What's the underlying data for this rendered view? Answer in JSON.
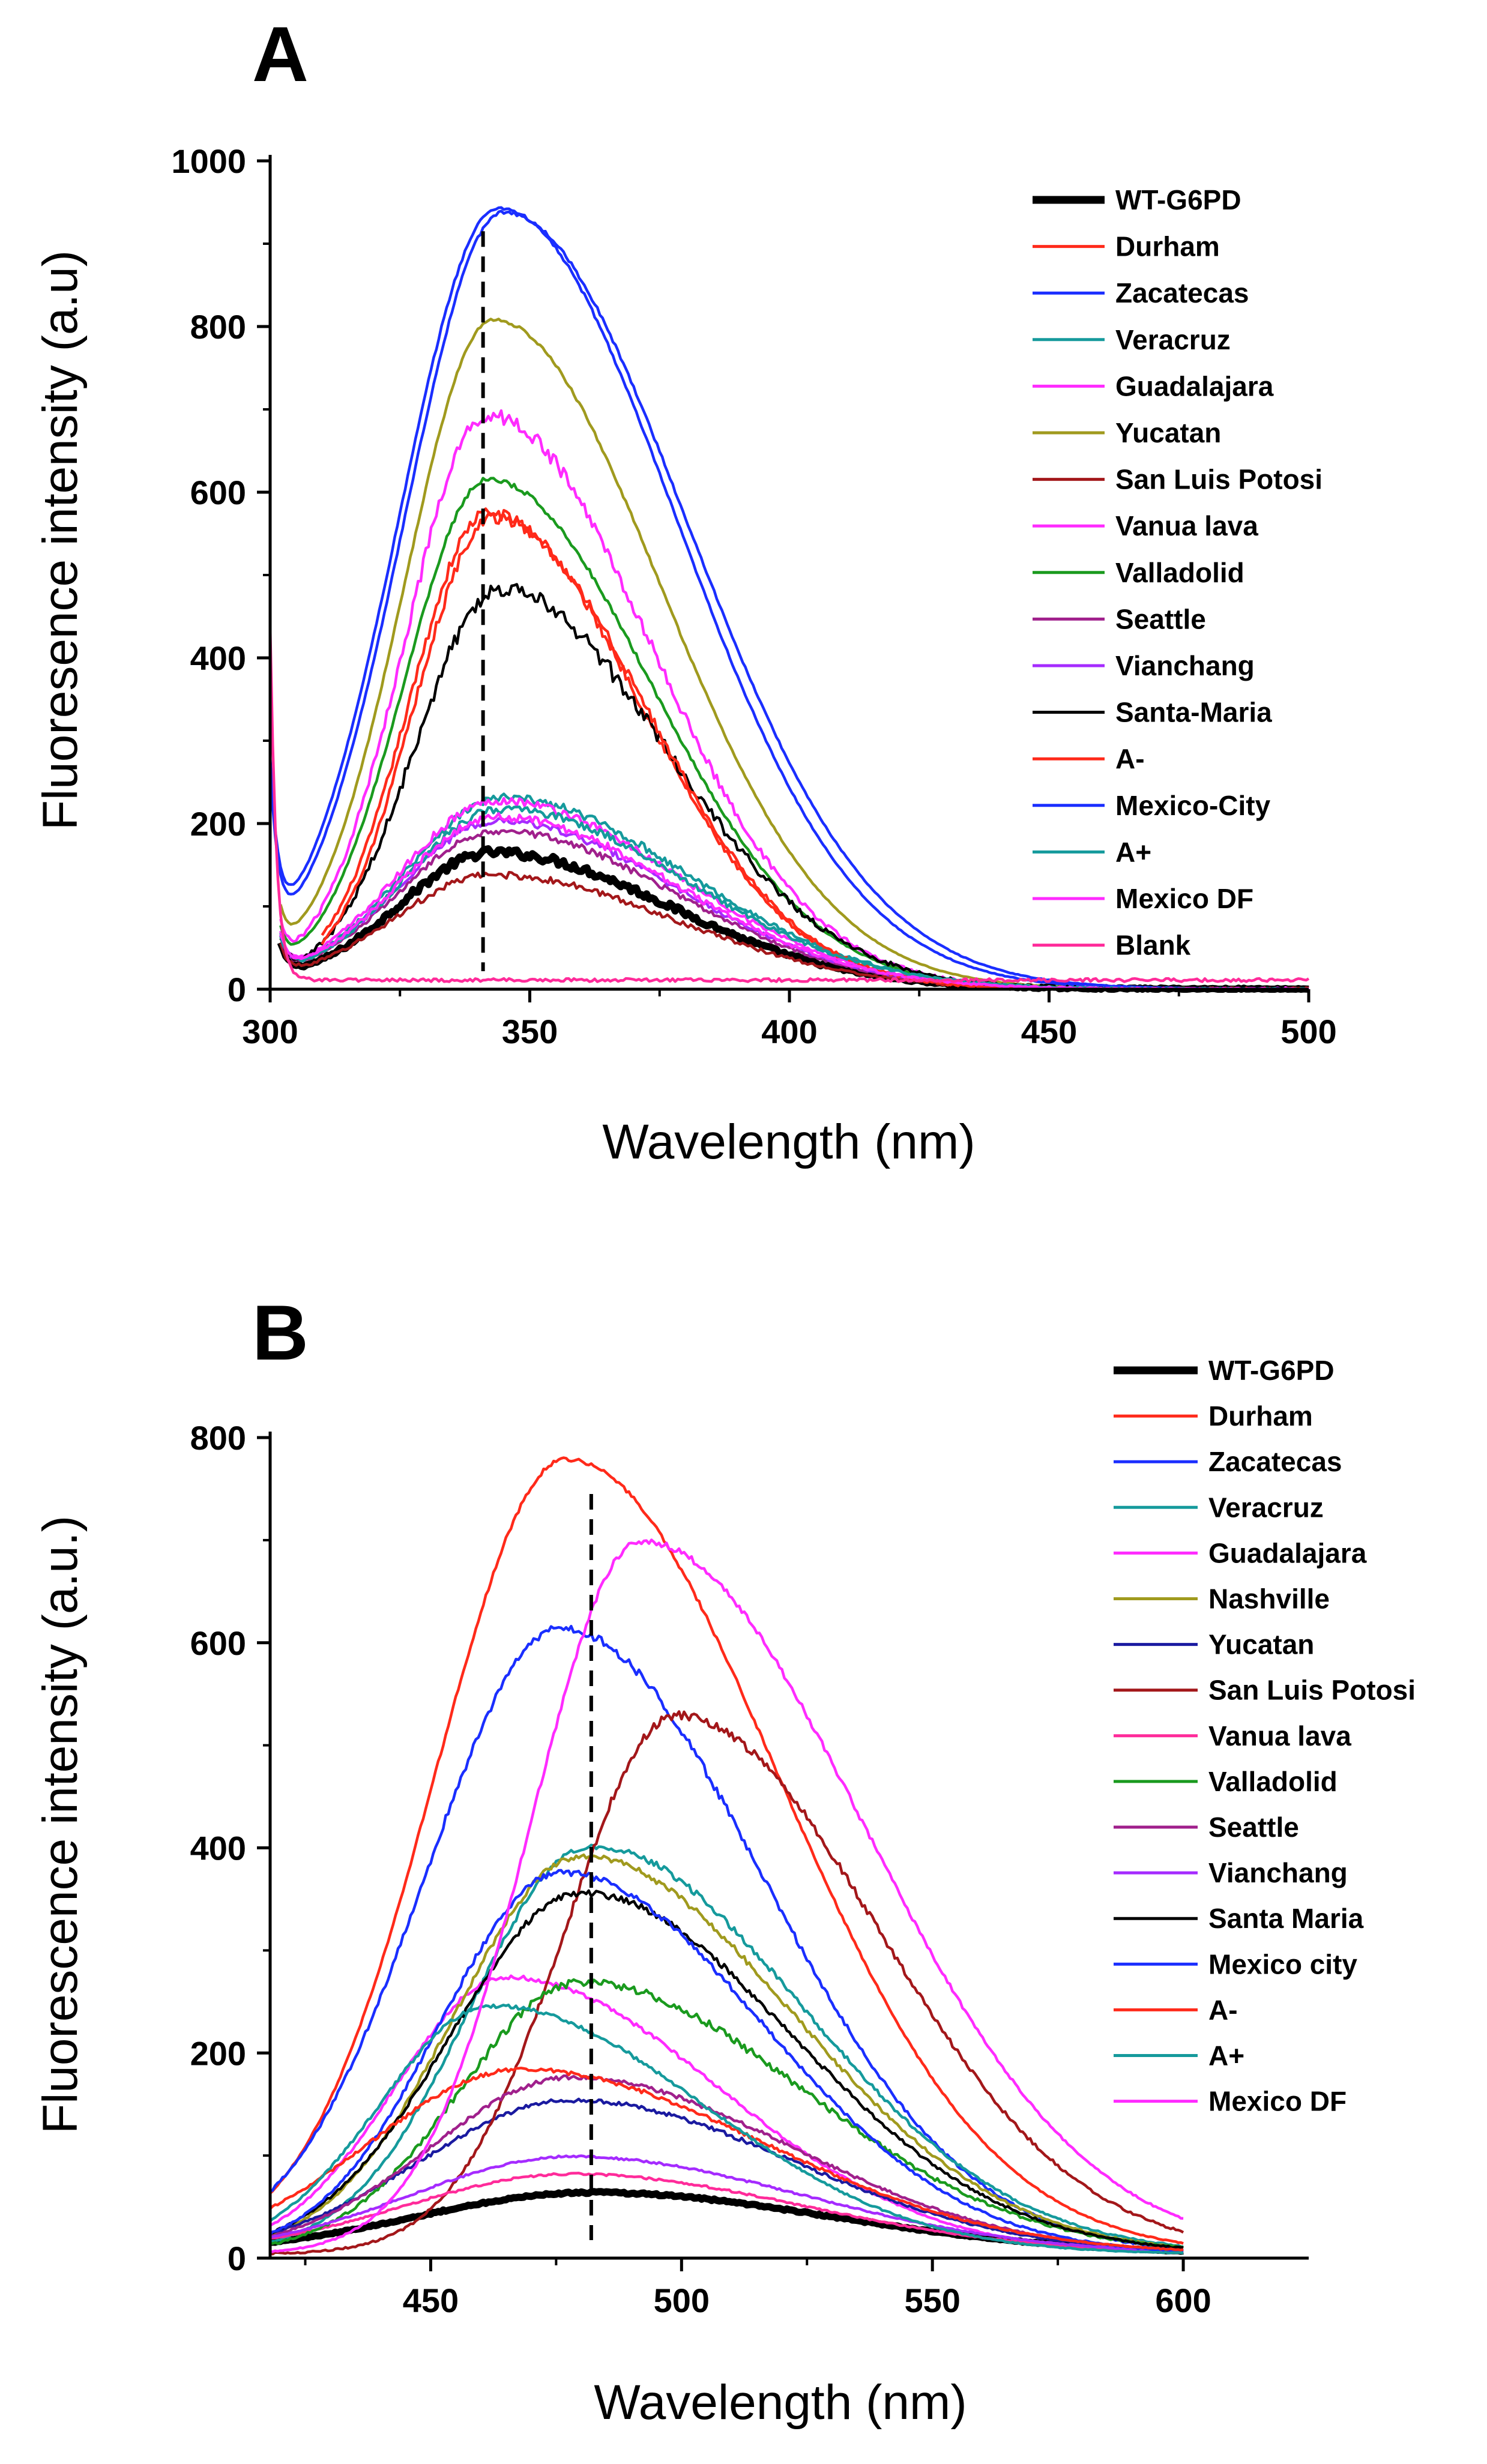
{
  "colors": {
    "black": "#000000",
    "red": "#ff2a1a",
    "blue": "#1a2eff",
    "teal": "#159a9c",
    "magenta": "#ff2bff",
    "olive": "#a09a1e",
    "darkred": "#a3171a",
    "green": "#1a9a1e",
    "purple": "#a0208c",
    "violet": "#a52bff",
    "navy": "#1a1aa0",
    "pink": "#ff2b9a"
  },
  "chart_data": [
    {
      "id": "A",
      "type": "line",
      "panel_label": "A",
      "xlabel": "Wavelength (nm)",
      "ylabel": "Fluoresence intensity (a.u)",
      "xlim": [
        300,
        500
      ],
      "ylim": [
        0,
        1000
      ],
      "xticks": [
        300,
        350,
        400,
        450,
        500
      ],
      "yticks": [
        0,
        200,
        400,
        600,
        800,
        1000
      ],
      "xtick_labels": [
        "300",
        "350",
        "400",
        "450",
        "500"
      ],
      "ytick_labels": [
        "0",
        "200",
        "400",
        "600",
        "800",
        "1000"
      ],
      "reference_line_x": 341,
      "legend_position": "top-right",
      "series": [
        {
          "name": "WT-G6PD",
          "color": "black",
          "thick": true,
          "x0": 302,
          "peak": 162,
          "center": 343,
          "wl": 18,
          "wr": 34,
          "start": 130,
          "noise": 5
        },
        {
          "name": "Durham",
          "color": "red",
          "x0": 310,
          "peak": 572,
          "center": 342,
          "wl": 15,
          "wr": 29,
          "start": 120,
          "noise": 7
        },
        {
          "name": "Zacatecas",
          "color": "blue",
          "x0": 300,
          "peak": 940,
          "center": 344,
          "wl": 19,
          "wr": 34,
          "start": 210,
          "noise": 2
        },
        {
          "name": "Veracruz",
          "color": "teal",
          "x0": 302,
          "peak": 228,
          "center": 345,
          "wl": 19,
          "wr": 35,
          "start": 150,
          "noise": 5
        },
        {
          "name": "Guadalajara",
          "color": "magenta",
          "x0": 302,
          "peak": 225,
          "center": 344,
          "wl": 19,
          "wr": 34,
          "start": 150,
          "noise": 5
        },
        {
          "name": "Yucatan",
          "color": "olive",
          "x0": 302,
          "peak": 805,
          "center": 343,
          "wl": 17,
          "wr": 32,
          "start": 180,
          "noise": 2
        },
        {
          "name": "San Luis Potosi",
          "color": "darkred",
          "x0": 302,
          "peak": 135,
          "center": 343,
          "wl": 19,
          "wr": 35,
          "start": 120,
          "noise": 4
        },
        {
          "name": "Vanua lava",
          "color": "magenta",
          "x0": 302,
          "peak": 690,
          "center": 342,
          "wl": 16,
          "wr": 31,
          "start": 160,
          "noise": 9
        },
        {
          "name": "Valladolid",
          "color": "green",
          "x0": 302,
          "peak": 612,
          "center": 342,
          "wl": 16,
          "wr": 31,
          "start": 150,
          "noise": 3
        },
        {
          "name": "Seattle",
          "color": "purple",
          "x0": 302,
          "peak": 188,
          "center": 344,
          "wl": 19,
          "wr": 34,
          "start": 140,
          "noise": 4
        },
        {
          "name": "Vianchang",
          "color": "violet",
          "x0": 302,
          "peak": 200,
          "center": 344,
          "wl": 19,
          "wr": 34,
          "start": 140,
          "noise": 4
        },
        {
          "name": "Santa-Maria",
          "color": "black",
          "x0": 302,
          "peak": 480,
          "center": 344,
          "wl": 16,
          "wr": 32,
          "start": 150,
          "noise": 10
        },
        {
          "name": "A-",
          "color": "red",
          "x0": 310,
          "peak": 566,
          "center": 343,
          "wl": 15,
          "wr": 29,
          "start": 120,
          "noise": 7
        },
        {
          "name": "Mexico-City",
          "color": "blue",
          "x0": 300,
          "peak": 935,
          "center": 345,
          "wl": 19,
          "wr": 35,
          "start": 210,
          "noise": 2
        },
        {
          "name": "A+",
          "color": "teal",
          "x0": 302,
          "peak": 215,
          "center": 345,
          "wl": 19,
          "wr": 35,
          "start": 150,
          "noise": 5
        },
        {
          "name": "Mexico DF",
          "color": "magenta",
          "x0": 302,
          "peak": 205,
          "center": 344,
          "wl": 19,
          "wr": 34,
          "start": 150,
          "noise": 5
        },
        {
          "name": "Blank",
          "color": "pink",
          "x0": 300,
          "peak": 0,
          "center": 400,
          "wl": 10,
          "wr": 10,
          "start": 440,
          "flat": 11,
          "noise": 2
        }
      ]
    },
    {
      "id": "B",
      "type": "line",
      "panel_label": "B",
      "xlabel": "Wavelength (nm)",
      "ylabel": "Fluorescence intensity (a.u.)",
      "xlim": [
        418,
        625
      ],
      "ylim": [
        0,
        800
      ],
      "xticks": [
        450,
        500,
        550,
        600
      ],
      "yticks": [
        0,
        200,
        400,
        600,
        800
      ],
      "xtick_labels": [
        "450",
        "500",
        "550",
        "600"
      ],
      "ytick_labels": [
        "0",
        "200",
        "400",
        "600",
        "800"
      ],
      "reference_line_x": 482,
      "legend_position": "top-right",
      "series": [
        {
          "name": "WT-G6PD",
          "color": "black",
          "thick": true,
          "x0": 418,
          "x1": 600,
          "peak": 60,
          "center": 482,
          "wl": 35,
          "wr": 48,
          "noise": 1
        },
        {
          "name": "Durham",
          "color": "red",
          "x0": 418,
          "x1": 600,
          "peak": 775,
          "center": 477,
          "wl": 26,
          "wr": 42,
          "noise": 2
        },
        {
          "name": "Zacatecas",
          "color": "blue",
          "x0": 418,
          "x1": 600,
          "peak": 610,
          "center": 476,
          "wl": 27,
          "wr": 40,
          "noise": 4
        },
        {
          "name": "Veracruz",
          "color": "teal",
          "x0": 418,
          "x1": 600,
          "peak": 398,
          "center": 482,
          "wl": 24,
          "wr": 42,
          "noise": 3
        },
        {
          "name": "Guadalajara",
          "color": "magenta",
          "x0": 418,
          "x1": 600,
          "peak": 270,
          "center": 465,
          "wl": 22,
          "wr": 42,
          "noise": 2
        },
        {
          "name": "Nashville",
          "color": "olive",
          "x0": 418,
          "x1": 600,
          "peak": 388,
          "center": 480,
          "wl": 25,
          "wr": 42,
          "noise": 3
        },
        {
          "name": "Yucatan",
          "color": "navy",
          "x0": 418,
          "x1": 600,
          "peak": 150,
          "center": 478,
          "wl": 30,
          "wr": 44,
          "noise": 2
        },
        {
          "name": "San Luis Potosi",
          "color": "darkred",
          "x0": 418,
          "x1": 600,
          "peak": 525,
          "center": 499,
          "wl": 22,
          "wr": 40,
          "noise": 4
        },
        {
          "name": "Vanua lava",
          "color": "pink",
          "x0": 418,
          "x1": 600,
          "peak": 78,
          "center": 478,
          "wl": 33,
          "wr": 46,
          "noise": 1
        },
        {
          "name": "Valladolid",
          "color": "green",
          "x0": 418,
          "x1": 600,
          "peak": 265,
          "center": 480,
          "wl": 24,
          "wr": 44,
          "noise": 4
        },
        {
          "name": "Seattle",
          "color": "purple",
          "x0": 418,
          "x1": 600,
          "peak": 172,
          "center": 478,
          "wl": 28,
          "wr": 44,
          "noise": 2
        },
        {
          "name": "Vianchang",
          "color": "violet",
          "x0": 418,
          "x1": 600,
          "peak": 95,
          "center": 478,
          "wl": 32,
          "wr": 46,
          "noise": 1
        },
        {
          "name": "Santa Maria",
          "color": "black",
          "x0": 418,
          "x1": 600,
          "peak": 352,
          "center": 480,
          "wl": 26,
          "wr": 42,
          "noise": 3
        },
        {
          "name": "Mexico city",
          "color": "blue",
          "x0": 418,
          "x1": 600,
          "peak": 372,
          "center": 476,
          "wl": 24,
          "wr": 40,
          "noise": 3
        },
        {
          "name": "A-",
          "color": "red",
          "x0": 418,
          "x1": 600,
          "peak": 180,
          "center": 468,
          "wl": 30,
          "wr": 48,
          "noise": 2
        },
        {
          "name": "A+",
          "color": "teal",
          "x0": 418,
          "x1": 600,
          "peak": 242,
          "center": 462,
          "wl": 22,
          "wr": 42,
          "noise": 2
        },
        {
          "name": "Mexico DF",
          "color": "magenta",
          "x0": 418,
          "x1": 600,
          "peak": 695,
          "center": 492,
          "wl": 22,
          "wr": 44,
          "noise": 3
        }
      ]
    }
  ]
}
